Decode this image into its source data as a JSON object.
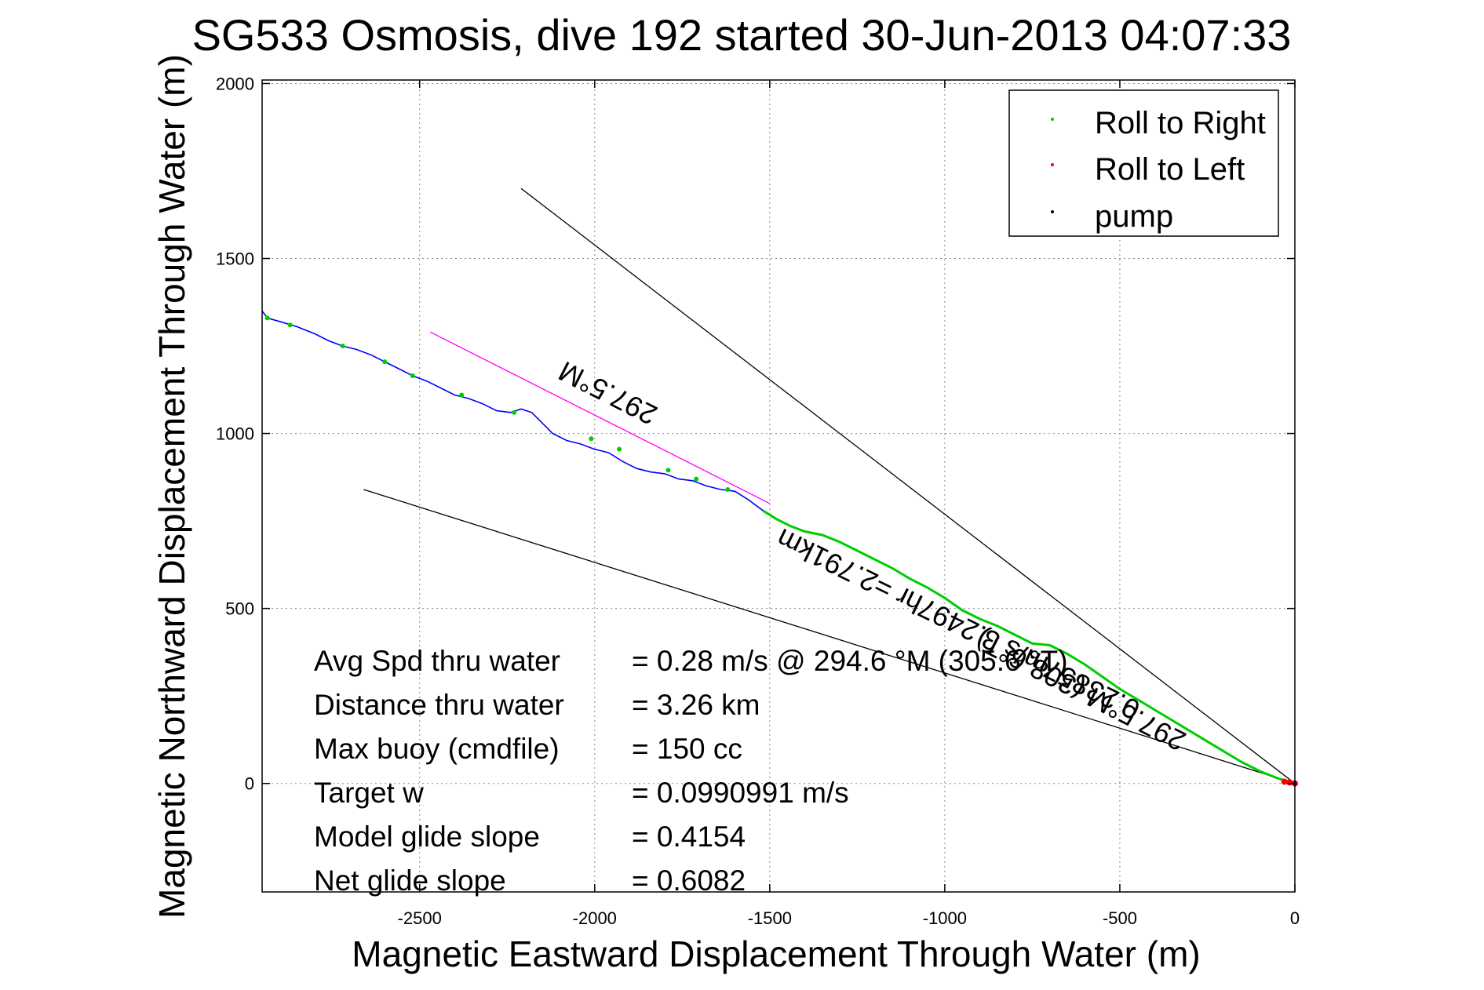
{
  "chart_data": {
    "type": "line",
    "title": "SG533 Osmosis, dive 192 started 30-Jun-2013 04:07:33",
    "xlabel": "Magnetic Eastward Displacement Through Water (m)",
    "ylabel": "Magnetic Northward Displacement Through Water (m)",
    "xlim": [
      -2950,
      0
    ],
    "ylim": [
      -310,
      2010
    ],
    "xticks": [
      -2500,
      -2000,
      -1500,
      -1000,
      -500,
      0
    ],
    "yticks": [
      0,
      500,
      1000,
      1500,
      2000
    ],
    "grid": true,
    "legend_position": "top-right",
    "legend": [
      {
        "label": "Roll to Right",
        "color": "#00cc00"
      },
      {
        "label": "Roll to Left",
        "color": "#ff0000"
      },
      {
        "label": "pump",
        "color": "#000000"
      }
    ],
    "track": {
      "color": "#0000ff",
      "x": [
        -2950,
        -2935,
        -2900,
        -2850,
        -2800,
        -2760,
        -2720,
        -2680,
        -2640,
        -2600,
        -2560,
        -2520,
        -2480,
        -2440,
        -2400,
        -2360,
        -2320,
        -2280,
        -2240,
        -2210,
        -2180,
        -2150,
        -2120,
        -2080,
        -2040,
        -2000,
        -1960,
        -1920,
        -1880,
        -1840,
        -1800,
        -1760,
        -1720,
        -1680,
        -1640,
        -1600,
        -1560,
        -1520,
        -1480,
        -1440,
        -1400,
        -1350,
        -1300,
        -1250,
        -1200,
        -1150,
        -1100,
        -1050,
        -1000,
        -950,
        -900,
        -850,
        -800,
        -750,
        -700,
        -650,
        -600,
        -550,
        -500,
        -450,
        -400,
        -350,
        -300,
        -250,
        -200,
        -150,
        -100,
        -50,
        0
      ],
      "y": [
        1350,
        1330,
        1320,
        1305,
        1285,
        1265,
        1250,
        1240,
        1225,
        1205,
        1185,
        1165,
        1150,
        1130,
        1110,
        1100,
        1085,
        1065,
        1060,
        1070,
        1060,
        1030,
        1000,
        980,
        970,
        955,
        945,
        920,
        900,
        890,
        885,
        870,
        865,
        850,
        840,
        835,
        810,
        780,
        755,
        735,
        720,
        710,
        690,
        665,
        640,
        615,
        585,
        560,
        530,
        495,
        470,
        450,
        425,
        400,
        395,
        370,
        340,
        305,
        270,
        240,
        210,
        180,
        150,
        120,
        90,
        60,
        35,
        15,
        0
      ]
    },
    "roll_right_points": {
      "x": [
        -2935,
        -2870,
        -2720,
        -2600,
        -2520,
        -2380,
        -2230,
        -2010,
        -1930,
        -1790,
        -1710,
        -1620
      ],
      "y": [
        1330,
        1310,
        1250,
        1205,
        1165,
        1110,
        1060,
        985,
        955,
        895,
        870,
        840
      ]
    },
    "roll_right_segment": {
      "x": [
        -1520,
        -1480,
        -1440,
        -1400,
        -1350,
        -1300,
        -1250,
        -1200,
        -1150,
        -1100,
        -1050,
        -1000,
        -950,
        -900,
        -850,
        -800,
        -750,
        -700,
        -650,
        -600,
        -550,
        -500,
        -450,
        -400,
        -350,
        -300,
        -250,
        -200,
        -150,
        -100,
        -50,
        0
      ],
      "y": [
        780,
        755,
        735,
        720,
        710,
        690,
        665,
        640,
        615,
        585,
        560,
        530,
        495,
        470,
        450,
        425,
        400,
        395,
        370,
        340,
        305,
        270,
        240,
        210,
        180,
        150,
        120,
        90,
        60,
        35,
        15,
        0
      ]
    },
    "roll_left_points": {
      "x": [
        -30,
        -15,
        0
      ],
      "y": [
        5,
        3,
        0
      ]
    },
    "reference_lines": [
      {
        "x": [
          0,
          -2210
        ],
        "y": [
          0,
          1700
        ],
        "color": "#000000"
      },
      {
        "x": [
          0,
          -2660
        ],
        "y": [
          0,
          840
        ],
        "color": "#000000"
      },
      {
        "x": [
          -1500,
          -2470
        ],
        "y": [
          800,
          1290
        ],
        "color": "#ff00ff"
      }
    ],
    "annotations": [
      {
        "text": "297.5°M",
        "x": -1950,
        "y": 1140,
        "rotation": 207
      },
      {
        "text": "0.23857m/s 3.2497hr =2.791km",
        "x": -950,
        "y": 480,
        "rotation": 206
      },
      {
        "text": "297.5°M (308.6°T)",
        "x": -600,
        "y": 290,
        "rotation": 207
      }
    ],
    "stats": [
      {
        "label": "Avg Spd thru water",
        "value": "=  0.28 m/s @ 294.6  °M (305.6  °T)"
      },
      {
        "label": "Distance thru water",
        "value": "=  3.26 km"
      },
      {
        "label": "Max buoy (cmdfile)",
        "value": "= 150 cc"
      },
      {
        "label": "Target w",
        "value": "= 0.0990991 m/s"
      },
      {
        "label": "Model glide slope",
        "value": "= 0.4154"
      },
      {
        "label": "Net glide slope",
        "value": "= 0.6082"
      }
    ]
  }
}
